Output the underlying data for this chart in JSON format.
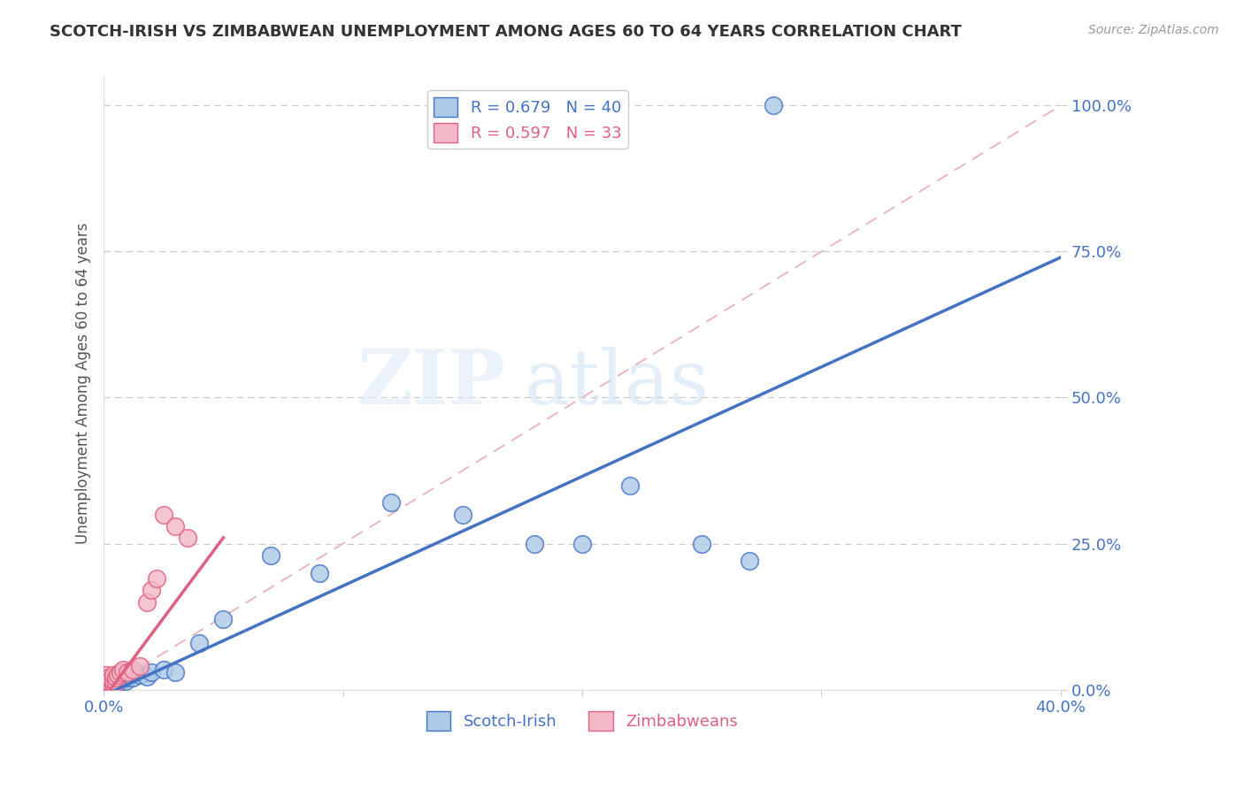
{
  "title": "SCOTCH-IRISH VS ZIMBABWEAN UNEMPLOYMENT AMONG AGES 60 TO 64 YEARS CORRELATION CHART",
  "source": "Source: ZipAtlas.com",
  "ylabel": "Unemployment Among Ages 60 to 64 years",
  "xlim": [
    0.0,
    0.4
  ],
  "ylim": [
    0.0,
    1.05
  ],
  "scotch_irish_R": 0.679,
  "scotch_irish_N": 40,
  "zimbabwean_R": 0.597,
  "zimbabwean_N": 33,
  "scotch_irish_color": "#adc9e8",
  "scotch_irish_line_color": "#4472c4",
  "zimbabwean_color": "#f2b8c6",
  "zimbabwean_line_color": "#e06080",
  "watermark_zip": "ZIP",
  "watermark_atlas": "atlas",
  "background_color": "#ffffff",
  "grid_color": "#cccccc",
  "title_color": "#333333",
  "axis_label_color": "#555555",
  "tick_color": "#4472c4",
  "scotch_irish_x": [
    0.001,
    0.001,
    0.001,
    0.002,
    0.002,
    0.002,
    0.002,
    0.003,
    0.003,
    0.003,
    0.003,
    0.004,
    0.004,
    0.004,
    0.005,
    0.005,
    0.006,
    0.006,
    0.007,
    0.008,
    0.009,
    0.01,
    0.012,
    0.015,
    0.018,
    0.02,
    0.025,
    0.03,
    0.04,
    0.05,
    0.07,
    0.09,
    0.12,
    0.15,
    0.18,
    0.2,
    0.22,
    0.25,
    0.27,
    0.28
  ],
  "scotch_irish_y": [
    0.005,
    0.003,
    0.007,
    0.004,
    0.006,
    0.008,
    0.01,
    0.005,
    0.007,
    0.009,
    0.012,
    0.006,
    0.01,
    0.013,
    0.008,
    0.012,
    0.01,
    0.015,
    0.015,
    0.018,
    0.015,
    0.02,
    0.02,
    0.025,
    0.022,
    0.03,
    0.035,
    0.03,
    0.08,
    0.12,
    0.23,
    0.2,
    0.32,
    0.3,
    0.25,
    0.25,
    0.35,
    0.25,
    0.22,
    1.0
  ],
  "zimbabwean_x": [
    0.001,
    0.001,
    0.001,
    0.001,
    0.001,
    0.001,
    0.001,
    0.001,
    0.002,
    0.002,
    0.002,
    0.002,
    0.002,
    0.003,
    0.003,
    0.003,
    0.004,
    0.004,
    0.004,
    0.005,
    0.005,
    0.006,
    0.007,
    0.008,
    0.01,
    0.012,
    0.015,
    0.018,
    0.02,
    0.022,
    0.025,
    0.03,
    0.035
  ],
  "zimbabwean_y": [
    0.003,
    0.005,
    0.007,
    0.01,
    0.012,
    0.015,
    0.02,
    0.025,
    0.005,
    0.008,
    0.01,
    0.015,
    0.02,
    0.008,
    0.012,
    0.018,
    0.01,
    0.015,
    0.025,
    0.012,
    0.02,
    0.025,
    0.03,
    0.035,
    0.03,
    0.035,
    0.04,
    0.15,
    0.17,
    0.19,
    0.3,
    0.28,
    0.26
  ],
  "diag_color": "#e8b0c0"
}
